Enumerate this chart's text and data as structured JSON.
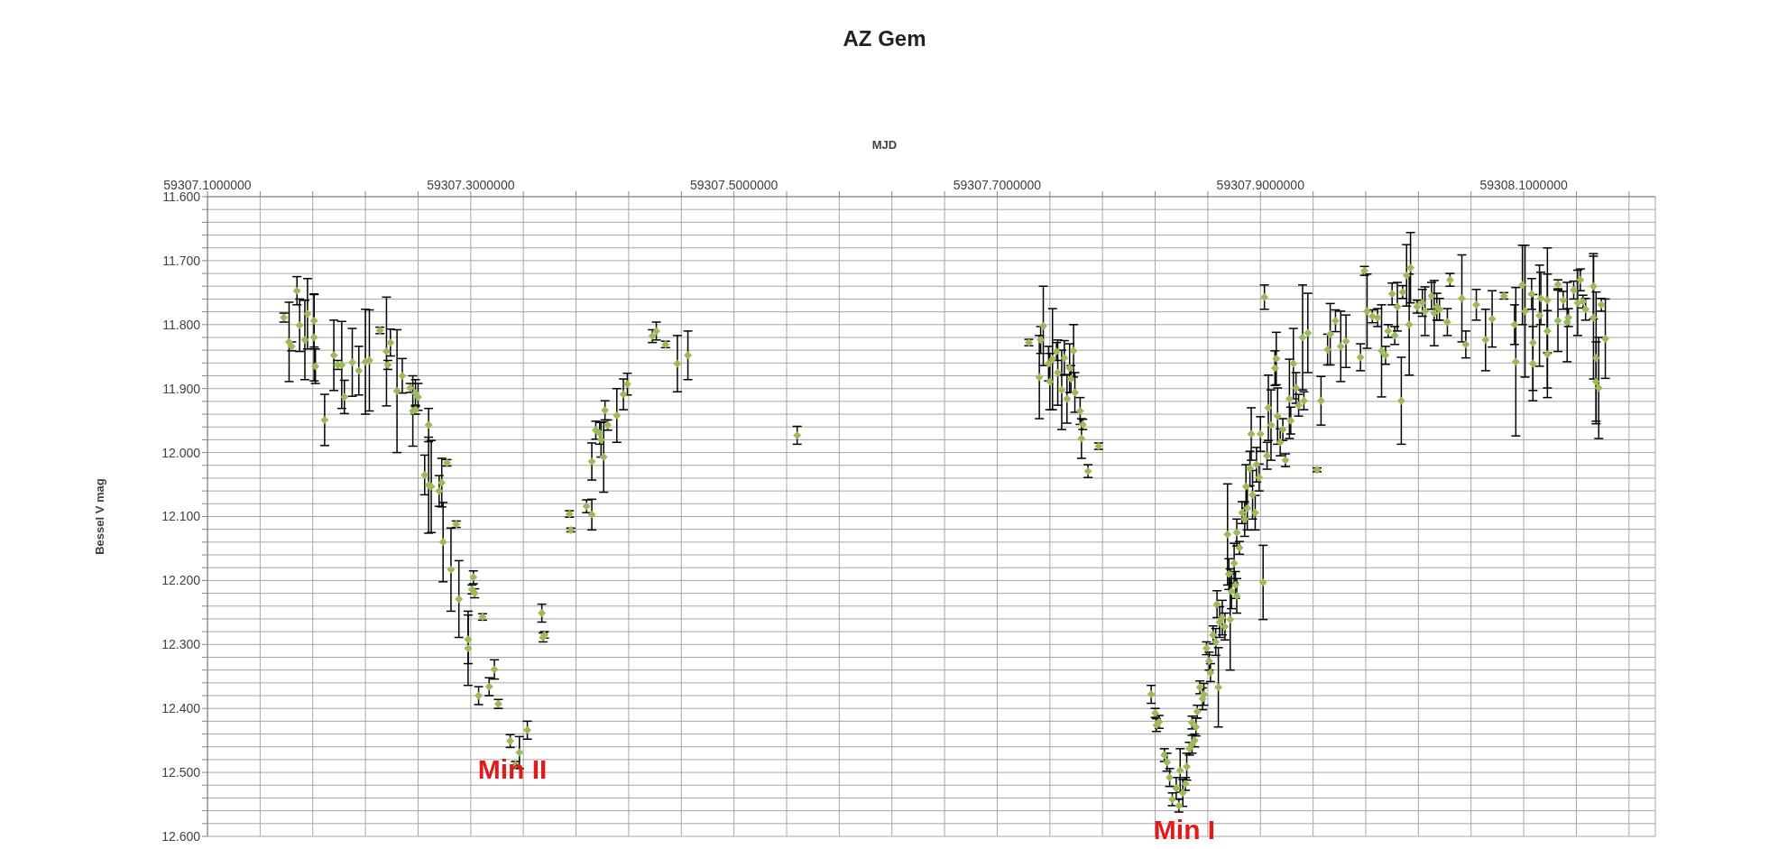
{
  "chart_data": {
    "type": "scatter",
    "title": "AZ Gem",
    "xlabel": "MJD",
    "ylabel": "Bessel V mag",
    "color": "#9bbb59",
    "marker": "diamond",
    "grid": true,
    "xlim": [
      59307.1,
      59308.2
    ],
    "ylim": [
      12.6,
      11.6
    ],
    "xticks": [
      {
        "value": 59307.1,
        "label": "59307.1000000"
      },
      {
        "value": 59307.14,
        "label": null
      },
      {
        "value": 59307.18,
        "label": null
      },
      {
        "value": 59307.22,
        "label": null
      },
      {
        "value": 59307.26,
        "label": null
      },
      {
        "value": 59307.3,
        "label": "59307.3000000"
      },
      {
        "value": 59307.34,
        "label": null
      },
      {
        "value": 59307.38,
        "label": null
      },
      {
        "value": 59307.42,
        "label": null
      },
      {
        "value": 59307.46,
        "label": null
      },
      {
        "value": 59307.5,
        "label": "59307.5000000"
      },
      {
        "value": 59307.54,
        "label": null
      },
      {
        "value": 59307.58,
        "label": null
      },
      {
        "value": 59307.62,
        "label": null
      },
      {
        "value": 59307.66,
        "label": null
      },
      {
        "value": 59307.7,
        "label": "59307.7000000"
      },
      {
        "value": 59307.74,
        "label": null
      },
      {
        "value": 59307.78,
        "label": null
      },
      {
        "value": 59307.82,
        "label": null
      },
      {
        "value": 59307.86,
        "label": null
      },
      {
        "value": 59307.9,
        "label": "59307.9000000"
      },
      {
        "value": 59307.94,
        "label": null
      },
      {
        "value": 59307.98,
        "label": null
      },
      {
        "value": 59308.02,
        "label": null
      },
      {
        "value": 59308.06,
        "label": null
      },
      {
        "value": 59308.1,
        "label": "59308.1000000"
      },
      {
        "value": 59308.14,
        "label": null
      },
      {
        "value": 59308.18,
        "label": null
      }
    ],
    "yticks": [
      {
        "value": 11.6,
        "label": "11.600"
      },
      {
        "value": 11.62,
        "label": null
      },
      {
        "value": 11.64,
        "label": null
      },
      {
        "value": 11.66,
        "label": null
      },
      {
        "value": 11.68,
        "label": null
      },
      {
        "value": 11.7,
        "label": "11.700"
      },
      {
        "value": 11.72,
        "label": null
      },
      {
        "value": 11.74,
        "label": null
      },
      {
        "value": 11.76,
        "label": null
      },
      {
        "value": 11.78,
        "label": null
      },
      {
        "value": 11.8,
        "label": "11.800"
      },
      {
        "value": 11.82,
        "label": null
      },
      {
        "value": 11.84,
        "label": null
      },
      {
        "value": 11.86,
        "label": null
      },
      {
        "value": 11.88,
        "label": null
      },
      {
        "value": 11.9,
        "label": "11.900"
      },
      {
        "value": 11.92,
        "label": null
      },
      {
        "value": 11.94,
        "label": null
      },
      {
        "value": 11.96,
        "label": null
      },
      {
        "value": 11.98,
        "label": null
      },
      {
        "value": 12.0,
        "label": "12.000"
      },
      {
        "value": 12.02,
        "label": null
      },
      {
        "value": 12.04,
        "label": null
      },
      {
        "value": 12.06,
        "label": null
      },
      {
        "value": 12.08,
        "label": null
      },
      {
        "value": 12.1,
        "label": "12.100"
      },
      {
        "value": 12.12,
        "label": null
      },
      {
        "value": 12.14,
        "label": null
      },
      {
        "value": 12.16,
        "label": null
      },
      {
        "value": 12.18,
        "label": null
      },
      {
        "value": 12.2,
        "label": "12.200"
      },
      {
        "value": 12.22,
        "label": null
      },
      {
        "value": 12.24,
        "label": null
      },
      {
        "value": 12.26,
        "label": null
      },
      {
        "value": 12.28,
        "label": null
      },
      {
        "value": 12.3,
        "label": "12.300"
      },
      {
        "value": 12.32,
        "label": null
      },
      {
        "value": 12.34,
        "label": null
      },
      {
        "value": 12.36,
        "label": null
      },
      {
        "value": 12.38,
        "label": null
      },
      {
        "value": 12.4,
        "label": "12.400"
      },
      {
        "value": 12.42,
        "label": null
      },
      {
        "value": 12.44,
        "label": null
      },
      {
        "value": 12.46,
        "label": null
      },
      {
        "value": 12.48,
        "label": null
      },
      {
        "value": 12.5,
        "label": "12.500"
      },
      {
        "value": 12.52,
        "label": null
      },
      {
        "value": 12.54,
        "label": null
      },
      {
        "value": 12.56,
        "label": null
      },
      {
        "value": 12.58,
        "label": null
      },
      {
        "value": 12.6,
        "label": "12.600"
      }
    ],
    "annotations": [
      "Min II",
      "Min I"
    ],
    "x": [
      59307.158,
      59307.162,
      59307.164,
      59307.168,
      59307.17,
      59307.174,
      59307.176,
      59307.181,
      59307.181,
      59307.182,
      59307.189,
      59307.196,
      59307.199,
      59307.202,
      59307.204,
      59307.21,
      59307.215,
      59307.22,
      59307.223,
      59307.231,
      59307.236,
      59307.237,
      59307.239,
      59307.244,
      59307.248,
      59307.254,
      59307.256,
      59307.258,
      59307.26,
      59307.258,
      59307.268,
      59307.265,
      59307.268,
      59307.27,
      59307.276,
      59307.278,
      59307.282,
      59307.279,
      59307.285,
      59307.289,
      59307.291,
      59307.298,
      59307.298,
      59307.302,
      59307.301,
      59307.303,
      59307.309,
      59307.306,
      59307.314,
      59307.318,
      59307.321,
      59307.33,
      59307.334,
      59307.337,
      59307.343,
      59307.354,
      59307.355,
      59307.356,
      59307.375,
      59307.376,
      59307.388,
      59307.392,
      59307.392,
      59307.395,
      59307.398,
      59307.399,
      59307.401,
      59307.402,
      59307.404,
      59307.411,
      59307.416,
      59307.419,
      59307.438,
      59307.441,
      59307.448,
      59307.457,
      59307.465,
      59307.548,
      59307.724,
      59307.732,
      59307.735,
      59307.733,
      59307.739,
      59307.74,
      59307.742,
      59307.745,
      59307.746,
      59307.749,
      59307.751,
      59307.753,
      59307.755,
      59307.756,
      59307.758,
      59307.759,
      59307.763,
      59307.765,
      59307.764,
      59307.769,
      59307.777,
      59307.817,
      59307.82,
      59307.821,
      59307.823,
      59307.827,
      59307.829,
      59307.831,
      59307.833,
      59307.836,
      59307.838,
      59307.839,
      59307.841,
      59307.843,
      59307.844,
      59307.846,
      59307.848,
      59307.85,
      59307.848,
      59307.851,
      59307.852,
      59307.854,
      59307.856,
      59307.857,
      59307.859,
      59307.861,
      59307.862,
      59307.864,
      59307.866,
      59307.867,
      59307.868,
      59307.869,
      59307.871,
      59307.873,
      59307.875,
      59307.877,
      59307.876,
      59307.878,
      59307.88,
      59307.881,
      59307.882,
      59307.882,
      59307.884,
      59307.886,
      59307.888,
      59307.889,
      59307.89,
      59307.892,
      59307.893,
      59307.894,
      59307.896,
      59307.897,
      59307.899,
      59307.9,
      59307.902,
      59307.903,
      59307.905,
      59307.906,
      59307.908,
      59307.911,
      59307.912,
      59307.913,
      59307.915,
      59307.917,
      59307.919,
      59307.922,
      59307.923,
      59307.925,
      59307.927,
      59307.929,
      59307.932,
      59307.933,
      59307.936,
      59307.943,
      59307.946,
      59307.951,
      59307.953,
      59307.957,
      59307.961,
      59307.965,
      59307.976,
      59307.979,
      59307.981,
      59307.985,
      59307.989,
      59307.992,
      59307.995,
      59307.997,
      59308.0,
      59308.002,
      59308.004,
      59308.007,
      59308.008,
      59308.011,
      59308.013,
      59308.014,
      59308.019,
      59308.023,
      59308.025,
      59308.03,
      59308.032,
      59308.034,
      59308.036,
      59308.042,
      59308.044,
      59308.053,
      59308.056,
      59308.064,
      59308.071,
      59308.076,
      59308.085,
      59308.093,
      59308.094,
      59308.099,
      59308.101,
      59308.106,
      59308.107,
      59308.107,
      59308.112,
      59308.113,
      59308.118,
      59308.118,
      59308.118,
      59308.126,
      59308.126,
      59308.13,
      59308.133,
      59308.134,
      59308.138,
      59308.141,
      59308.143,
      59308.145,
      59308.147,
      59308.153,
      59308.153,
      59308.155,
      59308.155,
      59308.157,
      59308.159,
      59308.162
    ],
    "values": [
      11.789,
      11.827,
      11.834,
      11.747,
      11.801,
      11.824,
      11.783,
      11.794,
      11.82,
      11.865,
      11.949,
      11.848,
      11.863,
      11.863,
      11.913,
      11.859,
      11.872,
      11.858,
      11.856,
      11.809,
      11.842,
      11.863,
      11.828,
      11.904,
      11.88,
      11.899,
      11.935,
      11.907,
      11.913,
      11.933,
      11.957,
      12.035,
      12.051,
      12.053,
      12.06,
      12.047,
      12.016,
      12.14,
      12.183,
      12.112,
      12.229,
      12.292,
      12.306,
      12.195,
      12.214,
      12.22,
      12.257,
      12.38,
      12.366,
      12.339,
      12.393,
      12.451,
      12.488,
      12.469,
      12.434,
      12.251,
      12.289,
      12.285,
      12.096,
      12.121,
      12.084,
      12.014,
      12.097,
      11.965,
      11.97,
      11.98,
      12.007,
      11.934,
      11.957,
      11.942,
      11.909,
      11.893,
      11.818,
      11.81,
      11.831,
      11.861,
      11.848,
      11.973,
      11.828,
      11.882,
      11.802,
      11.824,
      11.861,
      11.889,
      11.854,
      11.842,
      11.875,
      11.902,
      11.852,
      11.916,
      11.868,
      11.885,
      11.841,
      11.906,
      11.935,
      11.956,
      11.978,
      12.029,
      11.99,
      12.378,
      12.407,
      12.426,
      12.421,
      12.473,
      12.484,
      12.508,
      12.542,
      12.525,
      12.552,
      12.497,
      12.532,
      12.518,
      12.491,
      12.463,
      12.456,
      12.45,
      12.422,
      12.429,
      12.405,
      12.367,
      12.385,
      12.378,
      12.306,
      12.326,
      12.344,
      12.285,
      12.296,
      12.237,
      12.367,
      12.265,
      12.258,
      12.272,
      12.128,
      12.261,
      12.19,
      12.217,
      12.173,
      12.207,
      12.125,
      12.224,
      12.149,
      12.094,
      12.104,
      12.053,
      12.087,
      12.025,
      11.971,
      12.066,
      12.094,
      12.019,
      12.039,
      11.971,
      12.203,
      11.757,
      12.005,
      11.93,
      11.957,
      11.868,
      11.853,
      11.943,
      11.984,
      11.964,
      12.012,
      11.916,
      11.95,
      11.861,
      11.899,
      11.926,
      11.82,
      11.919,
      11.813,
      12.027,
      11.919,
      11.839,
      11.815,
      11.794,
      11.834,
      11.826,
      11.851,
      11.716,
      11.779,
      11.787,
      11.789,
      11.841,
      11.848,
      11.81,
      11.752,
      11.817,
      11.772,
      11.919,
      11.749,
      11.723,
      11.8,
      11.711,
      11.772,
      11.766,
      11.779,
      11.755,
      11.782,
      11.772,
      11.776,
      11.796,
      11.73,
      11.759,
      11.831,
      11.769,
      11.824,
      11.791,
      11.755,
      11.8,
      11.858,
      11.738,
      11.779,
      11.752,
      11.861,
      11.828,
      11.786,
      11.759,
      11.762,
      11.81,
      11.846,
      11.737,
      11.794,
      11.762,
      11.796,
      11.789,
      11.746,
      11.766,
      11.73,
      11.764,
      11.776,
      11.74,
      11.789,
      11.852,
      11.889,
      11.899,
      11.769,
      11.822
    ],
    "errors": [
      0.007,
      0.062,
      0.007,
      0.022,
      0.041,
      0.062,
      0.055,
      0.041,
      0.068,
      0.027,
      0.04,
      0.055,
      0.007,
      0.068,
      0.026,
      0.053,
      0.038,
      0.082,
      0.079,
      0.005,
      0.085,
      0.007,
      0.021,
      0.096,
      0.027,
      0.007,
      0.055,
      0.021,
      0.021,
      0.007,
      0.026,
      0.031,
      0.075,
      0.072,
      0.024,
      0.038,
      0.005,
      0.062,
      0.065,
      0.005,
      0.06,
      0.038,
      0.058,
      0.01,
      0.007,
      0.007,
      0.005,
      0.014,
      0.014,
      0.015,
      0.007,
      0.01,
      0.005,
      0.025,
      0.014,
      0.014,
      0.007,
      0.005,
      0.005,
      0.003,
      0.01,
      0.029,
      0.024,
      0.014,
      0.017,
      0.027,
      0.055,
      0.015,
      0.008,
      0.042,
      0.024,
      0.017,
      0.01,
      0.014,
      0.005,
      0.044,
      0.038,
      0.014,
      0.005,
      0.065,
      0.062,
      0.021,
      0.027,
      0.044,
      0.079,
      0.014,
      0.051,
      0.062,
      0.027,
      0.038,
      0.038,
      0.021,
      0.041,
      0.031,
      0.021,
      0.008,
      0.031,
      0.01,
      0.005,
      0.014,
      0.007,
      0.01,
      0.01,
      0.01,
      0.014,
      0.014,
      0.01,
      0.017,
      0.01,
      0.034,
      0.021,
      0.01,
      0.021,
      0.01,
      0.014,
      0.01,
      0.01,
      0.014,
      0.01,
      0.01,
      0.017,
      0.017,
      0.01,
      0.014,
      0.014,
      0.014,
      0.021,
      0.021,
      0.062,
      0.024,
      0.027,
      0.021,
      0.079,
      0.079,
      0.024,
      0.027,
      0.031,
      0.021,
      0.021,
      0.027,
      0.01,
      0.017,
      0.027,
      0.034,
      0.034,
      0.027,
      0.041,
      0.038,
      0.027,
      0.027,
      0.021,
      0.027,
      0.058,
      0.019,
      0.021,
      0.051,
      0.055,
      0.027,
      0.041,
      0.044,
      0.021,
      0.017,
      0.01,
      0.062,
      0.021,
      0.055,
      0.024,
      0.017,
      0.082,
      0.014,
      0.062,
      0.003,
      0.038,
      0.024,
      0.048,
      0.017,
      0.055,
      0.041,
      0.021,
      0.007,
      0.058,
      0.01,
      0.014,
      0.072,
      0.014,
      0.01,
      0.017,
      0.014,
      0.038,
      0.068,
      0.01,
      0.048,
      0.079,
      0.055,
      0.01,
      0.021,
      0.038,
      0.021,
      0.051,
      0.021,
      0.017,
      0.021,
      0.01,
      0.068,
      0.021,
      0.024,
      0.048,
      0.044,
      0.005,
      0.031,
      0.116,
      0.062,
      0.103,
      0.024,
      0.058,
      0.075,
      0.079,
      0.041,
      0.082,
      0.089,
      0.068,
      0.007,
      0.048,
      0.014,
      0.062,
      0.014,
      0.014,
      0.051,
      0.017,
      0.01,
      0.017,
      0.051,
      0.096,
      0.103,
      0.062,
      0.079,
      0.01,
      0.062
    ]
  }
}
